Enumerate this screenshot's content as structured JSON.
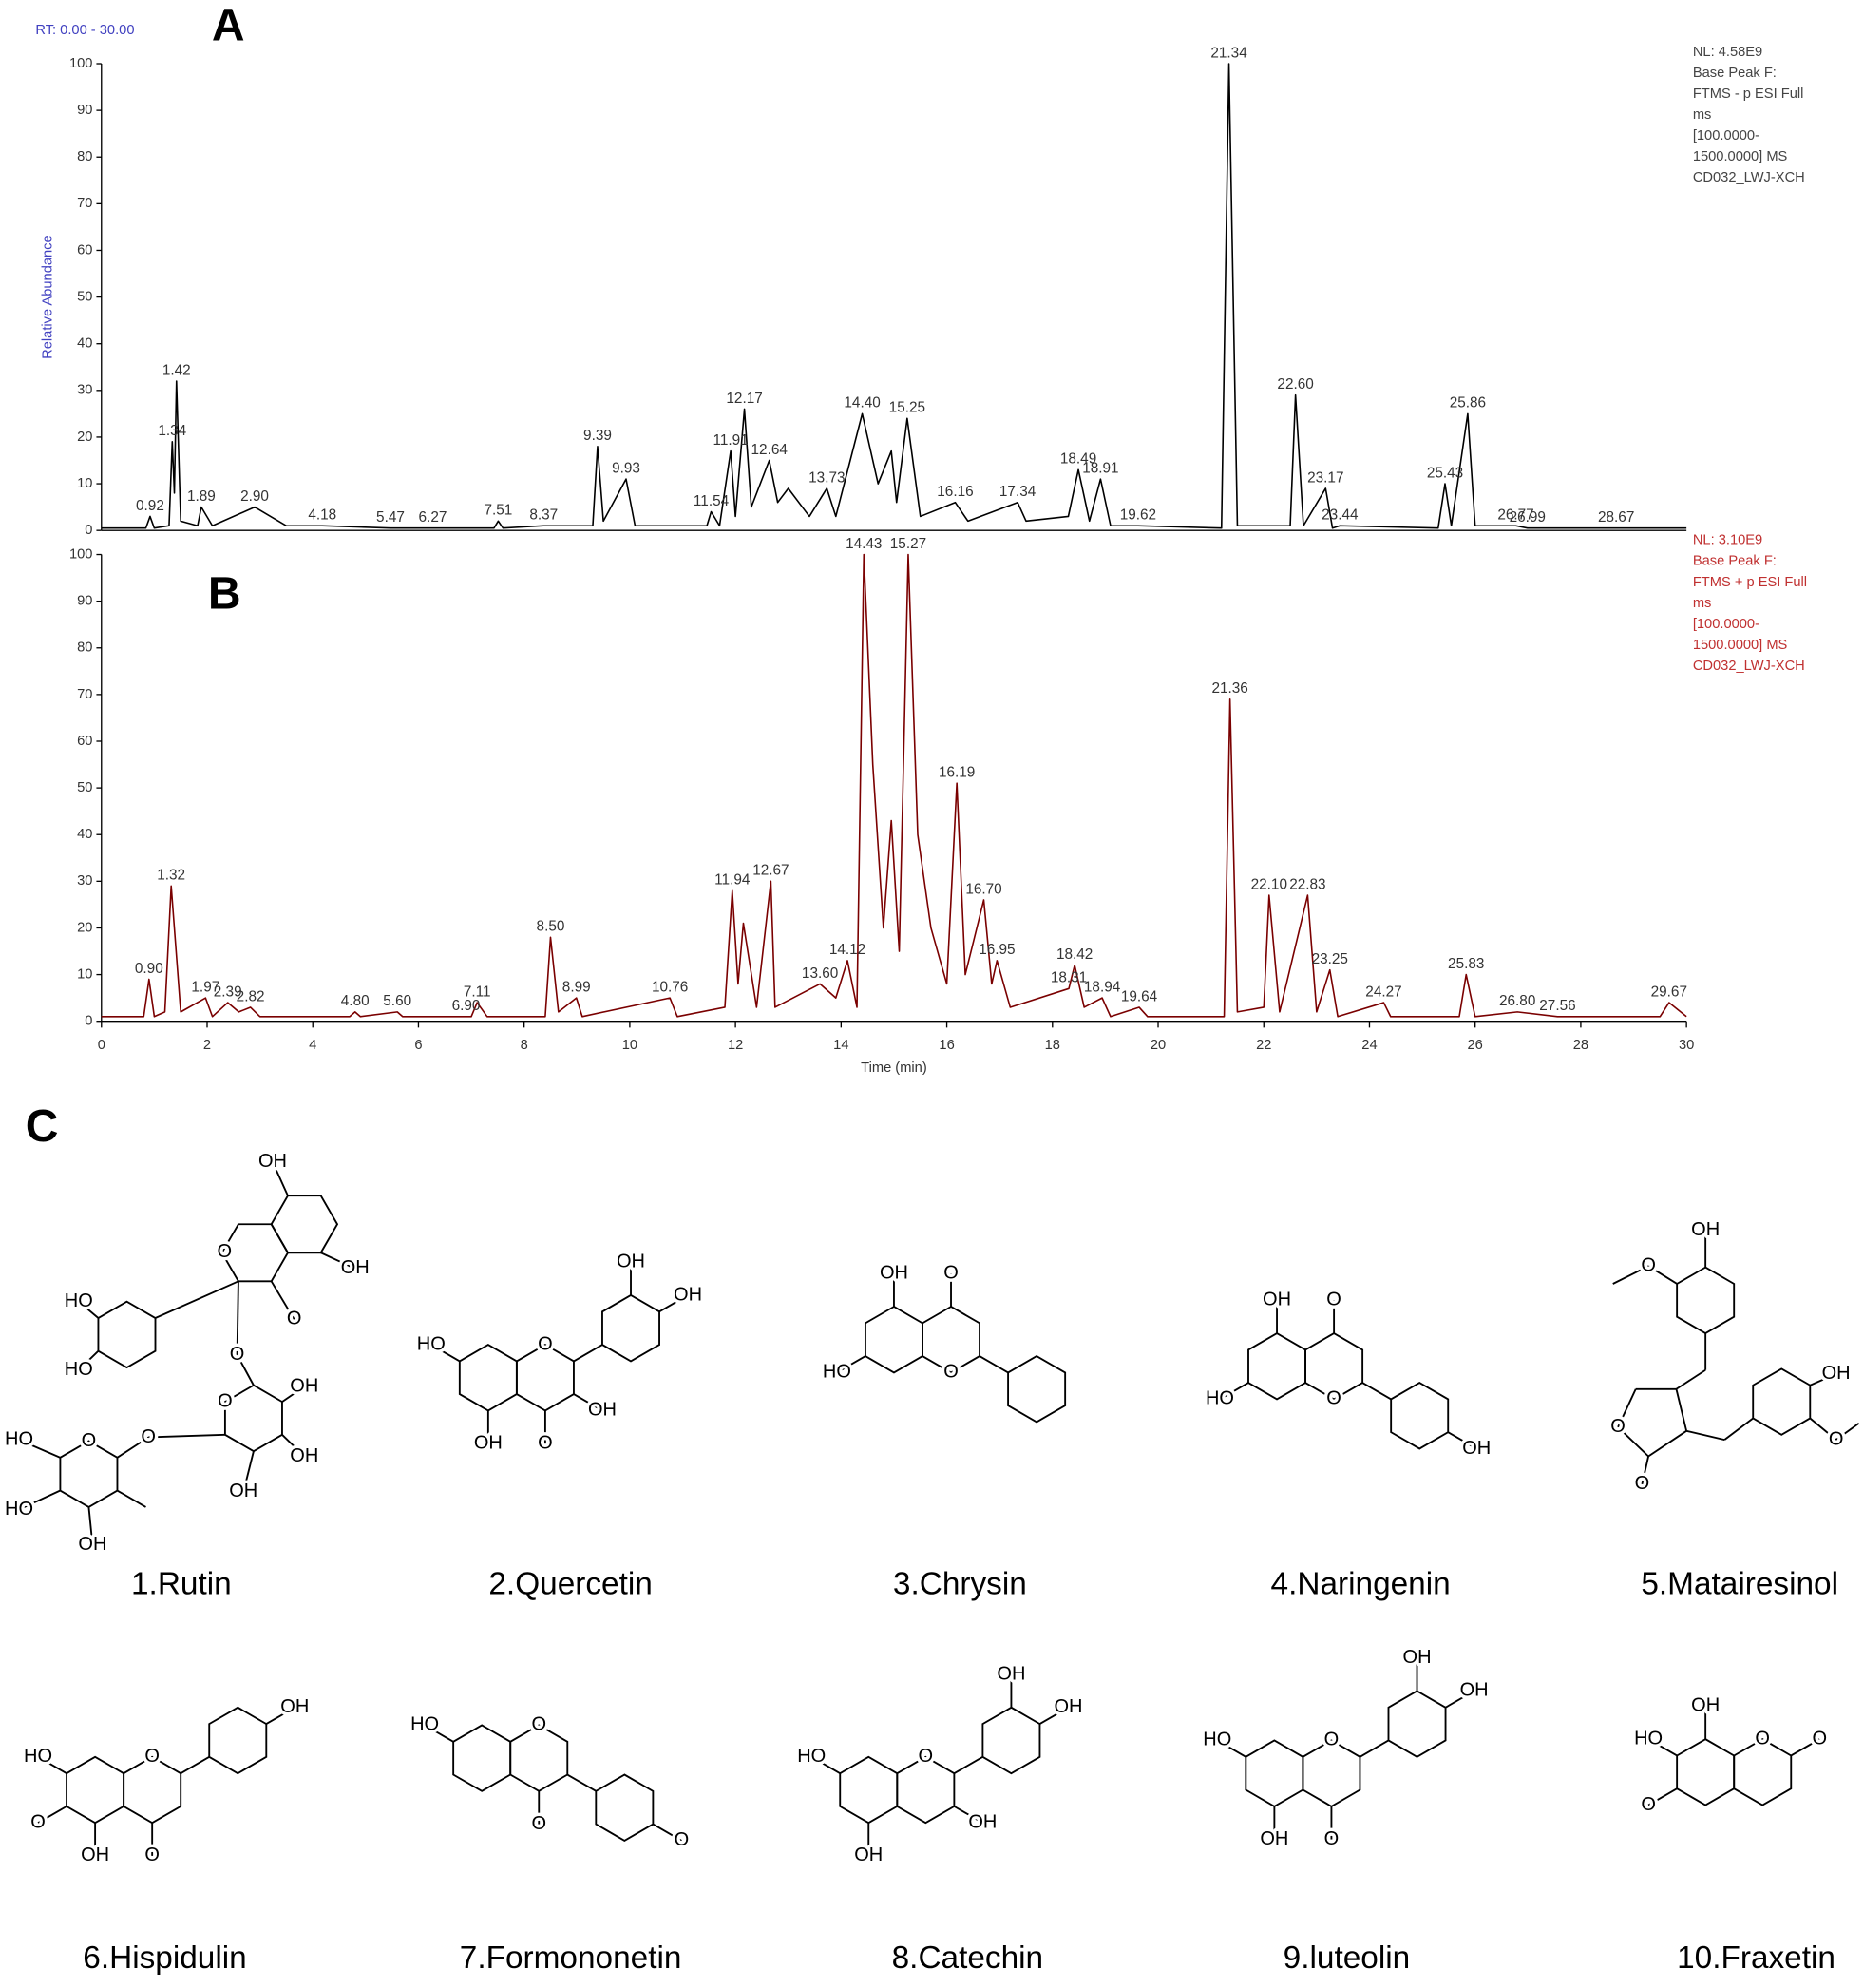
{
  "chart_data": [
    {
      "type": "line",
      "panel": "A",
      "header": "RT: 0.00 - 30.00",
      "ylabel": "Relative Abundance",
      "notes": [
        "NL: 4.58E9",
        "Base Peak F:",
        "FTMS - p ESI Full",
        "ms",
        "[100.0000-",
        "1500.0000] MS",
        "CD032_LWJ-XCH"
      ],
      "color": "#000000",
      "note_color": "#444444",
      "xlim": [
        0,
        30
      ],
      "ylim": [
        0,
        100
      ],
      "yticks": [
        0,
        10,
        20,
        30,
        40,
        50,
        60,
        70,
        80,
        90,
        100
      ],
      "x": [
        0,
        0.84,
        0.92,
        1.0,
        1.28,
        1.34,
        1.38,
        1.42,
        1.5,
        1.82,
        1.89,
        2.1,
        2.9,
        3.5,
        4.18,
        5.47,
        6.27,
        7.43,
        7.51,
        7.6,
        8.37,
        9.3,
        9.39,
        9.5,
        9.93,
        10.1,
        11.46,
        11.54,
        11.7,
        11.91,
        12.0,
        12.17,
        12.3,
        12.64,
        12.8,
        13.0,
        13.4,
        13.73,
        13.9,
        14.4,
        14.7,
        14.95,
        15.05,
        15.25,
        15.5,
        16.16,
        16.4,
        17.34,
        17.5,
        18.3,
        18.49,
        18.7,
        18.91,
        19.1,
        19.62,
        21.2,
        21.34,
        21.5,
        22.5,
        22.6,
        22.75,
        23.17,
        23.3,
        23.44,
        25.3,
        25.43,
        25.55,
        25.86,
        26.0,
        26.77,
        26.99,
        28.67,
        30
      ],
      "values": [
        0.5,
        0.5,
        3,
        0.5,
        1,
        19,
        8,
        32,
        2,
        1,
        5,
        1,
        5,
        1,
        1,
        0.5,
        0.5,
        0.5,
        2,
        0.5,
        1,
        1,
        18,
        2,
        11,
        1,
        1,
        4,
        1,
        17,
        3,
        26,
        5,
        15,
        6,
        9,
        3,
        9,
        3,
        25,
        10,
        17,
        6,
        24,
        3,
        6,
        2,
        6,
        2,
        3,
        13,
        2,
        11,
        1,
        1,
        0.5,
        100,
        1,
        1,
        29,
        1,
        9,
        0.5,
        1,
        0.5,
        10,
        1,
        25,
        1,
        1,
        0.5,
        0.5,
        0.5
      ],
      "peaks": [
        0.92,
        1.34,
        1.42,
        1.89,
        {
          "value": 2.9,
          "label": "2.90"
        },
        4.18,
        5.47,
        6.27,
        7.51,
        8.37,
        9.39,
        9.93,
        11.54,
        11.91,
        12.17,
        12.64,
        13.73,
        {
          "value": 14.4,
          "label": "14.40"
        },
        15.25,
        16.16,
        17.34,
        18.49,
        18.91,
        19.62,
        21.34,
        {
          "value": 22.6,
          "label": "22.60"
        },
        23.17,
        23.44,
        25.43,
        25.86,
        26.77,
        26.99,
        28.67
      ]
    },
    {
      "type": "line",
      "panel": "B",
      "xlabel": "Time (min)",
      "notes": [
        "NL: 3.10E9",
        "Base Peak F:",
        "FTMS + p ESI Full",
        "ms",
        "[100.0000-",
        "1500.0000] MS",
        "CD032_LWJ-XCH"
      ],
      "color": "#7a0000",
      "note_color": "#c03030",
      "xlim": [
        0,
        30
      ],
      "xticks": [
        0,
        2,
        4,
        6,
        8,
        10,
        12,
        14,
        16,
        18,
        20,
        22,
        24,
        26,
        28,
        30
      ],
      "ylim": [
        0,
        100
      ],
      "yticks": [
        0,
        10,
        20,
        30,
        40,
        50,
        60,
        70,
        80,
        90,
        100
      ],
      "x": [
        0,
        0.8,
        0.9,
        1.0,
        1.2,
        1.32,
        1.5,
        1.97,
        2.1,
        2.39,
        2.6,
        2.82,
        3.0,
        4.7,
        4.8,
        4.9,
        5.6,
        5.7,
        6.9,
        7.0,
        7.11,
        7.3,
        8.4,
        8.5,
        8.65,
        8.99,
        9.1,
        10.76,
        10.9,
        11.8,
        11.94,
        12.05,
        12.15,
        12.4,
        12.67,
        12.75,
        13.6,
        13.9,
        14.12,
        14.3,
        14.43,
        14.6,
        14.8,
        14.95,
        15.1,
        15.27,
        15.45,
        15.7,
        16.0,
        16.19,
        16.35,
        16.7,
        16.85,
        16.95,
        17.2,
        18.31,
        18.42,
        18.6,
        18.94,
        19.1,
        19.64,
        19.8,
        21.25,
        21.36,
        21.5,
        22.0,
        22.1,
        22.3,
        22.83,
        23.0,
        23.25,
        23.4,
        24.27,
        24.4,
        25.7,
        25.83,
        26.0,
        26.8,
        27.56,
        29.5,
        29.67,
        30
      ],
      "values": [
        1,
        1,
        9,
        1,
        2,
        29,
        2,
        5,
        1,
        4,
        2,
        3,
        1,
        1,
        2,
        1,
        2,
        1,
        1,
        1,
        4,
        1,
        1,
        18,
        2,
        5,
        1,
        5,
        1,
        3,
        28,
        8,
        21,
        3,
        30,
        3,
        8,
        5,
        13,
        3,
        100,
        55,
        20,
        43,
        15,
        100,
        40,
        20,
        8,
        51,
        10,
        26,
        8,
        13,
        3,
        7,
        12,
        3,
        5,
        1,
        3,
        1,
        1,
        69,
        2,
        3,
        27,
        2,
        27,
        2,
        11,
        1,
        4,
        1,
        1,
        10,
        1,
        2,
        1,
        1,
        4,
        1
      ],
      "peaks": [
        {
          "value": 0.9,
          "label": "0.90"
        },
        1.32,
        1.97,
        2.39,
        2.82,
        {
          "value": 4.8,
          "label": "4.80"
        },
        {
          "value": 5.6,
          "label": "5.60"
        },
        {
          "value": 6.9,
          "label": "6.90"
        },
        7.11,
        {
          "value": 8.5,
          "label": "8.50"
        },
        8.99,
        10.76,
        11.94,
        12.67,
        {
          "value": 13.6,
          "label": "13.60"
        },
        14.12,
        14.43,
        15.27,
        16.19,
        {
          "value": 16.7,
          "label": "16.70"
        },
        16.95,
        18.31,
        18.42,
        18.94,
        19.64,
        21.36,
        {
          "value": 22.1,
          "label": "22.10"
        },
        22.83,
        23.25,
        24.27,
        25.83,
        {
          "value": 26.8,
          "label": "26.80"
        },
        27.56,
        29.67
      ]
    }
  ],
  "panel_c": "C",
  "compounds": [
    {
      "name": "1.Rutin",
      "labels": [
        "OH",
        "OH",
        "O",
        "O",
        "HO",
        "HO",
        "O",
        "O",
        "OH",
        "OH",
        "OH",
        "O",
        "O",
        "HO",
        "HO",
        "OH"
      ]
    },
    {
      "name": "2.Quercetin",
      "labels": [
        "OH",
        "OH",
        "HO",
        "O",
        "OH",
        "OH",
        "O"
      ]
    },
    {
      "name": "3.Chrysin",
      "labels": [
        "OH",
        "O",
        "HO",
        "O"
      ]
    },
    {
      "name": "4.Naringenin",
      "labels": [
        "OH",
        "O",
        "HO",
        "O",
        "OH"
      ]
    },
    {
      "name": "5.Matairesinol",
      "labels": [
        "OH",
        "O",
        "OH",
        "O",
        "O",
        "O"
      ]
    },
    {
      "name": "6.Hispidulin",
      "labels": [
        "OH",
        "HO",
        "O",
        "O",
        "OH",
        "O"
      ]
    },
    {
      "name": "7.Formononetin",
      "labels": [
        "HO",
        "O",
        "O",
        "O"
      ]
    },
    {
      "name": "8.Catechin",
      "labels": [
        "OH",
        "OH",
        "HO",
        "O",
        "OH",
        "OH"
      ]
    },
    {
      "name": "9.luteolin",
      "labels": [
        "HO",
        "O",
        "OH",
        "OH",
        "OH",
        "O"
      ]
    },
    {
      "name": "10.Fraxetin",
      "labels": [
        "OH",
        "HO",
        "O",
        "O",
        "O"
      ]
    }
  ]
}
